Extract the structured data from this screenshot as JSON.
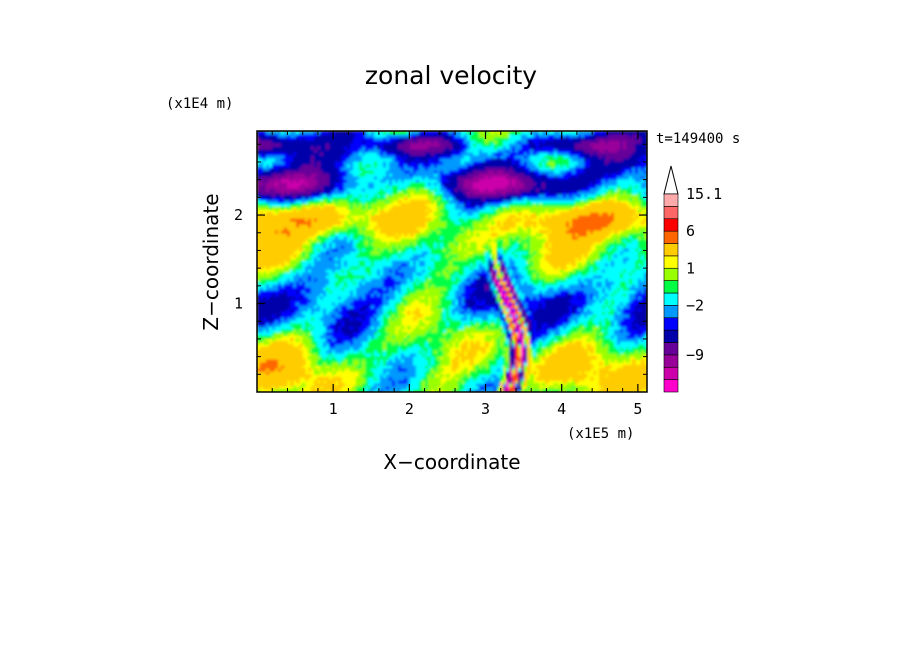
{
  "chart_data": {
    "type": "heatmap",
    "title": "zonal velocity",
    "xlabel": "X−coordinate",
    "ylabel": "Z−coordinate",
    "x_unit": "(x1E5 m)",
    "y_unit": "(x1E4 m)",
    "time_label": "t=149400 s",
    "xlim": [
      0.0,
      5.12
    ],
    "ylim": [
      0.0,
      2.95
    ],
    "x_ticks": [
      1,
      2,
      3,
      4,
      5
    ],
    "y_ticks": [
      1,
      2
    ],
    "colorbar": {
      "labels": [
        {
          "value": 15.1,
          "text": "15.1"
        },
        {
          "value": 6,
          "text": "6"
        },
        {
          "value": 1,
          "text": "1"
        },
        {
          "value": -2,
          "text": "−2"
        },
        {
          "value": -9,
          "text": "−9"
        }
      ],
      "levels": [
        -14,
        -11,
        -9,
        -7,
        -5,
        -3,
        -2,
        -1,
        0,
        1,
        2,
        3,
        6,
        9,
        12,
        15.1
      ],
      "colors": [
        "#ff00cc",
        "#cc00aa",
        "#990099",
        "#660099",
        "#0000aa",
        "#0000ff",
        "#0099ff",
        "#00ffff",
        "#00ff44",
        "#99ff00",
        "#ffff00",
        "#ffcc00",
        "#ff6600",
        "#ff0000",
        "#ff6666",
        "#ffaaaa"
      ]
    },
    "features": [
      {
        "kind": "band",
        "z_approx": 2.35,
        "sign": "negative",
        "note": "dark blue layer with negative velocity in upper half"
      },
      {
        "kind": "jet",
        "x_approx": 3.3,
        "z_range": [
          0,
          1.3
        ],
        "sign": "mixed",
        "note": "narrow intense alternating red/blue column"
      }
    ]
  }
}
